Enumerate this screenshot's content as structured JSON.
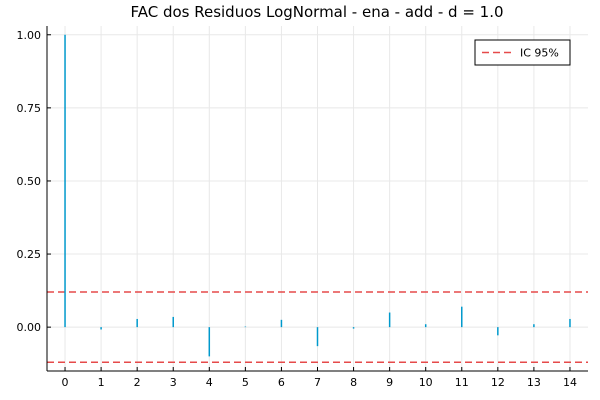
{
  "chart_data": {
    "type": "bar",
    "title": "FAC dos Residuos  LogNormal - ena - add - d = 1.0",
    "xlabel": "",
    "ylabel": "",
    "x": [
      0,
      1,
      2,
      3,
      4,
      5,
      6,
      7,
      8,
      9,
      10,
      11,
      12,
      13,
      14
    ],
    "series": [
      {
        "values": [
          1.0,
          -0.008,
          0.028,
          0.035,
          -0.1,
          0.002,
          0.025,
          -0.065,
          -0.005,
          0.05,
          0.01,
          0.07,
          -0.028,
          0.01,
          0.028
        ],
        "color": "#0099cc"
      }
    ],
    "confidence_interval": {
      "name": "IC 95%",
      "upper": 0.12,
      "lower": -0.12,
      "color": "#e64a4a",
      "style": "dashed"
    },
    "xlim": [
      -0.5,
      14.5
    ],
    "ylim": [
      -0.15,
      1.03
    ],
    "xticks": [
      "0",
      "1",
      "2",
      "3",
      "4",
      "5",
      "6",
      "7",
      "8",
      "9",
      "10",
      "11",
      "12",
      "13",
      "14"
    ],
    "yticks": [
      {
        "value": 0.0,
        "label": "0.00"
      },
      {
        "value": 0.25,
        "label": "0.25"
      },
      {
        "value": 0.5,
        "label": "0.50"
      },
      {
        "value": 0.75,
        "label": "0.75"
      },
      {
        "value": 1.0,
        "label": "1.00"
      }
    ],
    "grid": true,
    "legend_position": "top-right"
  }
}
